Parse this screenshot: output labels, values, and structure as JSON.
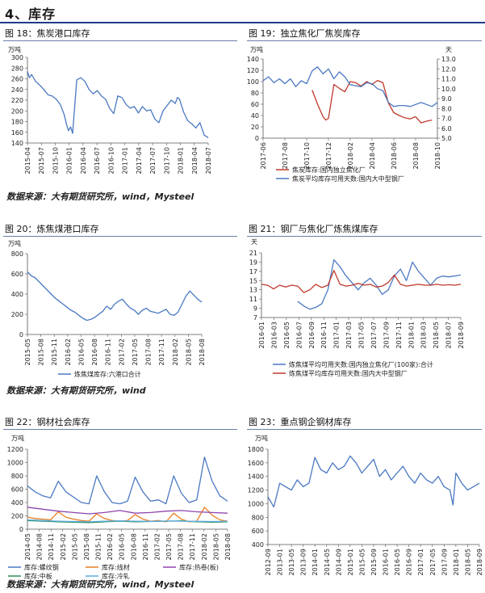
{
  "section_title": "4、库存",
  "sources": {
    "row1": "数据来源：大有期货研究所，wind，Mysteel",
    "row2": "数据来源：大有期货研究所，wind",
    "row3": "数据来源：大有期货研究所，wind，Mysteel"
  },
  "chart_data": [
    {
      "id": "c18",
      "caption": "图 18：焦炭港口库存",
      "type": "line",
      "unit_left": "万吨",
      "ylim": [
        140,
        300
      ],
      "yticks": [
        140,
        160,
        180,
        200,
        220,
        240,
        260,
        280,
        300
      ],
      "x_ticks": [
        "2015-04",
        "2015-07",
        "2015-10",
        "2016-01",
        "2016-04",
        "2016-07",
        "2016-10",
        "2017-01",
        "2017-04",
        "2017-07",
        "2017-10",
        "2018-01",
        "2018-04",
        "2018-07"
      ],
      "x_range": [
        0,
        44
      ],
      "series": [
        {
          "color": "#4a78c2",
          "axis": "left",
          "x": [
            0,
            0.5,
            1,
            2,
            3,
            4,
            5,
            6,
            7,
            8,
            9,
            9.5,
            10,
            10.5,
            11,
            12,
            13,
            14,
            15,
            16,
            17,
            18,
            19,
            20,
            21,
            22,
            23,
            24,
            25,
            26,
            27,
            28,
            29,
            30,
            31,
            32,
            33,
            34,
            35,
            36,
            36.5,
            37,
            38,
            39,
            40,
            41,
            42,
            43,
            44
          ],
          "y": [
            274,
            262,
            268,
            255,
            248,
            240,
            230,
            228,
            222,
            212,
            192,
            175,
            163,
            170,
            158,
            258,
            262,
            255,
            240,
            232,
            238,
            228,
            222,
            205,
            195,
            228,
            225,
            212,
            205,
            208,
            196,
            208,
            200,
            202,
            185,
            178,
            200,
            210,
            220,
            214,
            225,
            222,
            198,
            182,
            176,
            168,
            178,
            155,
            150
          ]
        }
      ]
    },
    {
      "id": "c19",
      "caption": "图 19：独立焦化厂焦炭库存",
      "type": "line",
      "unit_left": "万吨",
      "unit_right": "天",
      "ylim": [
        0,
        140
      ],
      "yticks": [
        0,
        20,
        40,
        60,
        80,
        100,
        120,
        140
      ],
      "ylim_right": [
        5.0,
        13.0
      ],
      "yticks_right": [
        "5.0",
        "6.0",
        "7.0",
        "8.0",
        "9.0",
        "10.0",
        "11.0",
        "12.0",
        "13.0"
      ],
      "x_ticks": [
        "2017-06",
        "2017-08",
        "2017-10",
        "2017-12",
        "2018-02",
        "2018-04",
        "2018-06",
        "2018-08",
        "2018-10"
      ],
      "x_range": [
        0,
        32
      ],
      "series": [
        {
          "name": "焦炭库存:国内独立焦化厂",
          "color": "#c0392b",
          "axis": "left",
          "x": [
            9,
            10,
            11,
            11.5,
            12,
            13,
            14,
            15,
            16,
            17,
            18,
            19,
            20,
            21,
            22,
            23,
            24,
            25,
            26,
            27,
            28,
            29,
            30,
            31
          ],
          "y": [
            85,
            60,
            38,
            32,
            35,
            95,
            88,
            82,
            100,
            98,
            92,
            100,
            95,
            102,
            98,
            62,
            45,
            40,
            36,
            34,
            38,
            27,
            30,
            32
          ]
        },
        {
          "name": "焦炭平均库存可用天数:国内大中型钢厂",
          "color": "#4a78c2",
          "axis": "right",
          "x": [
            0,
            1,
            2,
            3,
            4,
            5,
            6,
            7,
            8,
            9,
            10,
            11,
            12,
            13,
            14,
            15,
            16,
            17,
            18,
            19,
            20,
            21,
            22,
            23,
            24,
            25,
            26,
            27,
            28,
            29,
            30,
            31,
            32
          ],
          "y": [
            10.8,
            11.2,
            10.6,
            11.0,
            10.5,
            11.0,
            10.2,
            10.8,
            10.5,
            11.8,
            12.2,
            11.5,
            12.0,
            11.0,
            11.7,
            11.2,
            10.4,
            10.3,
            10.2,
            10.6,
            10.5,
            10.0,
            9.8,
            8.6,
            8.2,
            8.3,
            8.3,
            8.2,
            8.4,
            8.6,
            8.4,
            8.2,
            8.6
          ]
        }
      ]
    },
    {
      "id": "c20",
      "caption": "图 20：炼焦煤港口库存",
      "type": "line",
      "unit_left": "万吨",
      "ylim": [
        0,
        800
      ],
      "yticks": [
        0,
        200,
        400,
        600,
        800
      ],
      "x_ticks": [
        "2015-05",
        "2015-08",
        "2015-11",
        "2016-02",
        "2016-05",
        "2016-08",
        "2016-11",
        "2017-02",
        "2017-05",
        "2017-08",
        "2017-11",
        "2018-02",
        "2018-05",
        "2018-08"
      ],
      "x_range": [
        0,
        44
      ],
      "series": [
        {
          "name": "炼焦煤库存:六港口合计",
          "color": "#4a78c2",
          "axis": "left",
          "x": [
            0,
            1,
            2,
            3,
            4,
            5,
            6,
            7,
            8,
            9,
            10,
            11,
            12,
            13,
            14,
            15,
            16,
            17,
            18,
            19,
            20,
            21,
            22,
            23,
            24,
            25,
            26,
            27,
            28,
            29,
            30,
            31,
            32,
            33,
            34,
            35,
            36,
            37,
            38,
            39,
            40,
            41,
            42,
            43,
            44
          ],
          "y": [
            620,
            580,
            560,
            520,
            480,
            440,
            400,
            360,
            330,
            300,
            270,
            240,
            220,
            190,
            160,
            140,
            150,
            170,
            200,
            230,
            280,
            250,
            300,
            330,
            350,
            300,
            260,
            240,
            200,
            240,
            260,
            230,
            220,
            210,
            230,
            250,
            200,
            190,
            220,
            300,
            380,
            430,
            390,
            350,
            320
          ]
        }
      ]
    },
    {
      "id": "c21",
      "caption": "图 21：钢厂与焦化厂炼焦煤库存",
      "type": "line",
      "unit_left": "天",
      "ylim": [
        7,
        21
      ],
      "yticks": [
        7,
        9,
        11,
        13,
        15,
        17,
        19,
        21
      ],
      "x_ticks": [
        "2016-01",
        "2016-03",
        "2016-05",
        "2016-07",
        "2016-09",
        "2016-11",
        "2017-01",
        "2017-03",
        "2017-05",
        "2017-07",
        "2017-09",
        "2017-11",
        "2018-01",
        "2018-03",
        "2018-05",
        "2018-07",
        "2018-09"
      ],
      "x_range": [
        0,
        33
      ],
      "series": [
        {
          "name": "炼焦煤平均可用天数:国内独立焦化厂(100家):合计",
          "color": "#4a78c2",
          "axis": "left",
          "x": [
            6,
            7,
            8,
            9,
            10,
            11,
            12,
            13,
            14,
            15,
            16,
            17,
            18,
            19,
            20,
            21,
            22,
            23,
            24,
            25,
            26,
            27,
            28,
            29,
            30,
            31,
            32,
            33
          ],
          "y": [
            10.5,
            9.5,
            8.8,
            9.2,
            10,
            13,
            19.5,
            18,
            16,
            14.5,
            13,
            14.5,
            15.5,
            14,
            12,
            13,
            16,
            17.5,
            15,
            19,
            17,
            15.5,
            14,
            15.5,
            16,
            15.8,
            16,
            16.2
          ]
        },
        {
          "name": "炼焦煤平均库存可用天数:国内大中型钢厂",
          "color": "#c0392b",
          "axis": "left",
          "x": [
            0,
            1,
            2,
            3,
            4,
            5,
            6,
            7,
            8,
            9,
            10,
            11,
            12,
            13,
            14,
            15,
            16,
            17,
            18,
            19,
            20,
            21,
            22,
            23,
            24,
            25,
            26,
            27,
            28,
            29,
            30,
            31,
            32,
            33
          ],
          "y": [
            14.2,
            14.0,
            13.2,
            14.0,
            13.6,
            14.0,
            13.8,
            12.4,
            13.0,
            14.2,
            13.5,
            14.0,
            17.2,
            14.2,
            13.8,
            14.0,
            14.4,
            14.0,
            14.2,
            13.6,
            13.8,
            14.6,
            16.2,
            14.2,
            13.8,
            14.0,
            14.2,
            14.0,
            14.0,
            14.2,
            14.0,
            14.1,
            14.0,
            14.2
          ]
        }
      ]
    },
    {
      "id": "c22",
      "caption": "图 22：钢材社会库存",
      "type": "line",
      "unit_left": "万吨",
      "ylim": [
        0,
        1200
      ],
      "yticks": [
        0,
        200,
        400,
        600,
        800,
        1000,
        1200
      ],
      "x_ticks": [
        "2014-05",
        "2014-08",
        "2014-11",
        "2015-02",
        "2015-05",
        "2015-08",
        "2015-11",
        "2016-02",
        "2016-05",
        "2016-08",
        "2016-11",
        "2017-02",
        "2017-05",
        "2017-08",
        "2017-11",
        "2018-02",
        "2018-05",
        "2018-08"
      ],
      "x_range": [
        0,
        52
      ],
      "series": [
        {
          "name": "库存:螺纹钢",
          "color": "#4a78c2",
          "axis": "left",
          "x": [
            0,
            2,
            4,
            6,
            8,
            10,
            12,
            14,
            16,
            18,
            20,
            22,
            24,
            26,
            28,
            30,
            32,
            34,
            36,
            38,
            40,
            42,
            44,
            46,
            48,
            50,
            52
          ],
          "y": [
            650,
            560,
            500,
            470,
            720,
            560,
            480,
            400,
            380,
            800,
            560,
            400,
            380,
            420,
            780,
            560,
            420,
            440,
            380,
            800,
            540,
            400,
            440,
            1080,
            720,
            500,
            420
          ]
        },
        {
          "name": "库存:线材",
          "color": "#e67e22",
          "axis": "left",
          "x": [
            0,
            2,
            4,
            6,
            8,
            10,
            12,
            14,
            16,
            18,
            20,
            22,
            24,
            26,
            28,
            30,
            32,
            34,
            36,
            38,
            40,
            42,
            44,
            46,
            48,
            50,
            52
          ],
          "y": [
            180,
            160,
            150,
            140,
            260,
            180,
            150,
            130,
            120,
            230,
            160,
            130,
            120,
            130,
            220,
            150,
            120,
            130,
            110,
            240,
            150,
            110,
            120,
            330,
            210,
            140,
            120
          ]
        },
        {
          "name": "库存:热卷(板)",
          "color": "#8e44ad",
          "axis": "left",
          "x": [
            0,
            4,
            8,
            12,
            16,
            20,
            24,
            28,
            32,
            36,
            40,
            44,
            48,
            52
          ],
          "y": [
            330,
            300,
            270,
            250,
            230,
            250,
            280,
            240,
            250,
            270,
            280,
            260,
            250,
            240
          ]
        },
        {
          "name": "库存:中板",
          "color": "#2e8b57",
          "axis": "left",
          "x": [
            0,
            4,
            8,
            12,
            16,
            20,
            24,
            28,
            32,
            36,
            40,
            44,
            48,
            52
          ],
          "y": [
            130,
            120,
            110,
            105,
            100,
            110,
            120,
            110,
            115,
            120,
            125,
            110,
            105,
            110
          ]
        },
        {
          "name": "库存:冷轧",
          "color": "#5dade2",
          "axis": "left",
          "x": [
            0,
            4,
            8,
            12,
            16,
            20,
            24,
            28,
            32,
            36,
            40,
            44,
            48,
            52
          ],
          "y": [
            140,
            130,
            120,
            115,
            110,
            120,
            125,
            120,
            118,
            122,
            120,
            118,
            115,
            118
          ]
        }
      ]
    },
    {
      "id": "c23",
      "caption": "图 23：重点钢企钢材库存",
      "type": "line",
      "unit_left": "万吨",
      "ylim": [
        400,
        1800
      ],
      "yticks": [
        400,
        600,
        800,
        1000,
        1200,
        1400,
        1600,
        1800
      ],
      "x_ticks": [
        "2012-09",
        "2013-01",
        "2013-05",
        "2013-09",
        "2014-01",
        "2014-05",
        "2014-09",
        "2015-01",
        "2015-05",
        "2015-09",
        "2016-01",
        "2016-05",
        "2016-09",
        "2017-01",
        "2017-05",
        "2017-09",
        "2018-01",
        "2018-05",
        "2018-09"
      ],
      "x_range": [
        0,
        72
      ],
      "series": [
        {
          "color": "#4a78c2",
          "axis": "left",
          "x": [
            0,
            2,
            4,
            6,
            8,
            10,
            12,
            14,
            16,
            18,
            20,
            22,
            24,
            26,
            28,
            30,
            32,
            34,
            36,
            38,
            40,
            42,
            44,
            46,
            48,
            50,
            52,
            54,
            56,
            58,
            60,
            62,
            63,
            64,
            66,
            68,
            70,
            72
          ],
          "y": [
            1100,
            950,
            1300,
            1250,
            1200,
            1350,
            1250,
            1300,
            1680,
            1500,
            1450,
            1600,
            1500,
            1550,
            1700,
            1600,
            1450,
            1550,
            1650,
            1400,
            1500,
            1350,
            1450,
            1550,
            1400,
            1300,
            1450,
            1350,
            1300,
            1400,
            1250,
            1200,
            980,
            1450,
            1300,
            1200,
            1250,
            1300
          ]
        }
      ]
    }
  ]
}
